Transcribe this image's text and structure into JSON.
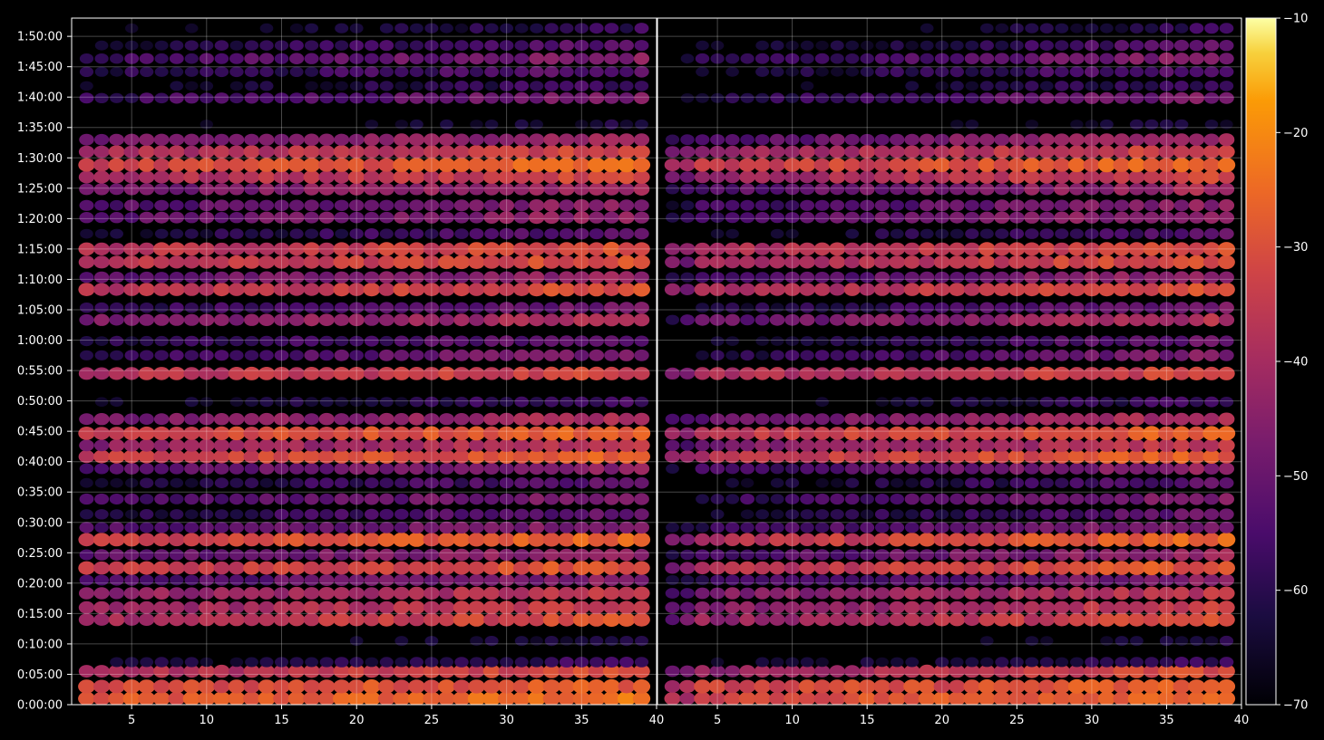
{
  "chart_data": {
    "type": "heatmap",
    "title": "",
    "xlabel": "",
    "ylabel": "",
    "colormap": "inferno",
    "background": "#000000",
    "grid": true,
    "panels": [
      {
        "name": "left",
        "xlim": [
          1,
          40
        ],
        "x_ticks": [
          5,
          10,
          15,
          20,
          25,
          30,
          35,
          40
        ],
        "x_tick_labels": [
          "5",
          "10",
          "15",
          "20",
          "25",
          "30",
          "35",
          "40"
        ],
        "x_step": 1,
        "x_start": 2,
        "x_end": 39
      },
      {
        "name": "right",
        "xlim": [
          1,
          40
        ],
        "x_ticks": [
          5,
          10,
          15,
          20,
          25,
          30,
          35,
          40
        ],
        "x_tick_labels": [
          "5",
          "10",
          "15",
          "20",
          "25",
          "30",
          "35",
          "40"
        ],
        "x_step": 1,
        "x_start": 2,
        "x_end": 39
      }
    ],
    "ylim_seconds": [
      0,
      6780
    ],
    "y_ticks_seconds": [
      0,
      300,
      600,
      900,
      1200,
      1500,
      1800,
      2100,
      2400,
      2700,
      3000,
      3300,
      3600,
      3900,
      4200,
      4500,
      4800,
      5100,
      5400,
      5700,
      6000,
      6300,
      6600
    ],
    "y_tick_labels": [
      "0:00:00",
      "0:05:00",
      "0:10:00",
      "0:15:00",
      "0:20:00",
      "0:25:00",
      "0:30:00",
      "0:35:00",
      "0:40:00",
      "0:45:00",
      "0:50:00",
      "0:55:00",
      "1:00:00",
      "1:05:00",
      "1:10:00",
      "1:15:00",
      "1:20:00",
      "1:25:00",
      "1:30:00",
      "1:35:00",
      "1:40:00",
      "1:45:00",
      "1:50:00"
    ],
    "colorbar": {
      "range": [
        -70,
        -10
      ],
      "ticks": [
        -70,
        -60,
        -50,
        -40,
        -30,
        -20,
        -10
      ],
      "tick_labels": [
        "−70",
        "−60",
        "−50",
        "−40",
        "−30",
        "−20",
        "−10"
      ]
    },
    "bands": [
      {
        "t": 60,
        "value": -24,
        "ramp": 6
      },
      {
        "t": 180,
        "value": -27,
        "ramp": 5
      },
      {
        "t": 330,
        "value": -30,
        "ramp": 10
      },
      {
        "t": 420,
        "value": -57,
        "ramp": 8
      },
      {
        "t": 630,
        "value": -62,
        "ramp": 10
      },
      {
        "t": 840,
        "value": -30,
        "ramp": 10
      },
      {
        "t": 960,
        "value": -33,
        "ramp": 10
      },
      {
        "t": 1100,
        "value": -36,
        "ramp": 8
      },
      {
        "t": 1230,
        "value": -45,
        "ramp": 10
      },
      {
        "t": 1350,
        "value": -28,
        "ramp": 8
      },
      {
        "t": 1480,
        "value": -42,
        "ramp": 10
      },
      {
        "t": 1630,
        "value": -25,
        "ramp": 10
      },
      {
        "t": 1750,
        "value": -45,
        "ramp": 10
      },
      {
        "t": 1880,
        "value": -50,
        "ramp": 12
      },
      {
        "t": 2030,
        "value": -46,
        "ramp": 10
      },
      {
        "t": 2190,
        "value": -52,
        "ramp": 12
      },
      {
        "t": 2330,
        "value": -44,
        "ramp": 10
      },
      {
        "t": 2450,
        "value": -27,
        "ramp": 8
      },
      {
        "t": 2560,
        "value": -35,
        "ramp": 10
      },
      {
        "t": 2680,
        "value": -26,
        "ramp": 8
      },
      {
        "t": 2820,
        "value": -38,
        "ramp": 10
      },
      {
        "t": 2990,
        "value": -56,
        "ramp": 12
      },
      {
        "t": 3270,
        "value": -32,
        "ramp": 6
      },
      {
        "t": 3450,
        "value": -46,
        "ramp": 12
      },
      {
        "t": 3590,
        "value": -50,
        "ramp": 12
      },
      {
        "t": 3800,
        "value": -38,
        "ramp": 10
      },
      {
        "t": 3920,
        "value": -48,
        "ramp": 12
      },
      {
        "t": 4100,
        "value": -30,
        "ramp": 8
      },
      {
        "t": 4220,
        "value": -42,
        "ramp": 10
      },
      {
        "t": 4370,
        "value": -30,
        "ramp": 8
      },
      {
        "t": 4500,
        "value": -30,
        "ramp": 8
      },
      {
        "t": 4650,
        "value": -52,
        "ramp": 12
      },
      {
        "t": 4810,
        "value": -42,
        "ramp": 10
      },
      {
        "t": 4930,
        "value": -44,
        "ramp": 10
      },
      {
        "t": 5090,
        "value": -40,
        "ramp": 10
      },
      {
        "t": 5210,
        "value": -32,
        "ramp": 8
      },
      {
        "t": 5330,
        "value": -25,
        "ramp": 8
      },
      {
        "t": 5460,
        "value": -32,
        "ramp": 8
      },
      {
        "t": 5580,
        "value": -40,
        "ramp": 10
      },
      {
        "t": 5730,
        "value": -62,
        "ramp": 10
      },
      {
        "t": 5990,
        "value": -46,
        "ramp": 12
      },
      {
        "t": 6110,
        "value": -56,
        "ramp": 12
      },
      {
        "t": 6250,
        "value": -52,
        "ramp": 10
      },
      {
        "t": 6380,
        "value": -45,
        "ramp": 12
      },
      {
        "t": 6510,
        "value": -52,
        "ramp": 12
      },
      {
        "t": 6680,
        "value": -58,
        "ramp": 12
      }
    ]
  }
}
